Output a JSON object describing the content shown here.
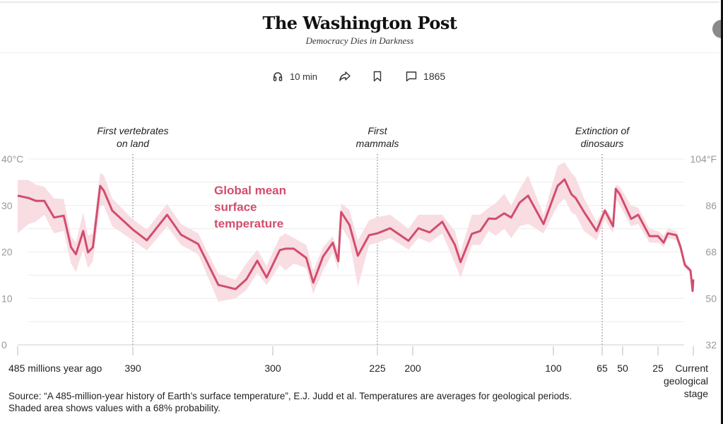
{
  "header": {
    "logo": "The Washington Post",
    "tagline": "Democracy Dies in Darkness"
  },
  "toolbar": {
    "listen_label": "10 min",
    "comments_count": "1865",
    "icons": [
      "headphones-icon",
      "share-icon",
      "bookmark-icon",
      "comment-icon"
    ]
  },
  "chart_data": {
    "type": "line",
    "series_label_lines": [
      "Global mean",
      "surface",
      "temperature"
    ],
    "colors": {
      "line": "#d14d6d",
      "band": "#f8dde3",
      "grid": "#ececec",
      "axis_text": "#999999"
    },
    "xlabel": "",
    "ylabel": "",
    "x_unit": "millions of years ago",
    "xlim": [
      485,
      0
    ],
    "ylim": [
      0,
      40
    ],
    "grid": true,
    "y_ticks_left": [
      {
        "value": 40,
        "label": "40°C"
      },
      {
        "value": 30,
        "label": "30"
      },
      {
        "value": 20,
        "label": "20"
      },
      {
        "value": 10,
        "label": "10"
      },
      {
        "value": 0,
        "label": "0"
      }
    ],
    "y_ticks_right": [
      {
        "value": 40,
        "label": "104°F"
      },
      {
        "value": 30,
        "label": "86"
      },
      {
        "value": 20,
        "label": "68"
      },
      {
        "value": 10,
        "label": "50"
      },
      {
        "value": 0,
        "label": "32"
      }
    ],
    "x_ticks": [
      {
        "value": 485,
        "label": "485 millions year ago"
      },
      {
        "value": 390,
        "label": "390"
      },
      {
        "value": 300,
        "label": "300"
      },
      {
        "value": 225,
        "label": "225"
      },
      {
        "value": 200,
        "label": "200"
      },
      {
        "value": 100,
        "label": "100"
      },
      {
        "value": 65,
        "label": "65"
      },
      {
        "value": 50,
        "label": "50"
      },
      {
        "value": 25,
        "label": "25"
      },
      {
        "value": 0,
        "label": "Current geological stage",
        "label_lines": [
          "Current",
          "geological",
          "stage"
        ]
      }
    ],
    "annotations": [
      {
        "x": 390,
        "lines": [
          "First vertebrates",
          "on land"
        ]
      },
      {
        "x": 225,
        "lines": [
          "First",
          "mammals"
        ]
      },
      {
        "x": 65,
        "lines": [
          "Extinction of",
          "dinosaurs"
        ]
      }
    ],
    "x": [
      485,
      476,
      470,
      463,
      455,
      447,
      441,
      437,
      431,
      427,
      423,
      417,
      414,
      407,
      390,
      381,
      368,
      359,
      348,
      335,
      324,
      317,
      310,
      304,
      295,
      291,
      285,
      276,
      271,
      264,
      257,
      253,
      251,
      245,
      239,
      231,
      225,
      216,
      203,
      196,
      188,
      179,
      170,
      166,
      158,
      152,
      146,
      141,
      135,
      130,
      124,
      118,
      107,
      97,
      92,
      87,
      84,
      78,
      69,
      63,
      57,
      55,
      52,
      44,
      39,
      31,
      25,
      21,
      18,
      12,
      9,
      6,
      2,
      0.5,
      0
    ],
    "y": [
      32.1,
      31.6,
      31.0,
      31.0,
      27.4,
      27.8,
      21.0,
      19.5,
      24.5,
      19.9,
      21.0,
      34.2,
      33.2,
      28.9,
      24.8,
      22.5,
      28.0,
      23.7,
      21.7,
      12.9,
      12.0,
      14.1,
      18.1,
      14.5,
      20.4,
      20.7,
      20.7,
      18.7,
      13.4,
      19.0,
      22.0,
      18.0,
      28.6,
      25.8,
      19.2,
      23.6,
      24.0,
      25.1,
      22.4,
      25.1,
      24.2,
      26.5,
      21.5,
      17.8,
      23.9,
      24.5,
      27.2,
      27.1,
      28.3,
      27.4,
      30.6,
      32.1,
      26.0,
      34.2,
      35.6,
      32.4,
      31.6,
      28.6,
      24.5,
      28.9,
      25.5,
      33.6,
      32.4,
      27.1,
      28.0,
      23.4,
      23.4,
      22.0,
      24.0,
      23.6,
      21.0,
      17.2,
      16.0,
      11.6,
      14.1
    ],
    "band_lower": [
      24,
      26,
      26.5,
      28,
      24,
      24.5,
      17.5,
      15.7,
      20.5,
      16.5,
      18,
      30,
      30,
      25.5,
      22.5,
      20.3,
      25.5,
      21.5,
      19.5,
      9.3,
      10,
      11.8,
      15.5,
      12.8,
      17.2,
      16,
      17.5,
      16.5,
      11,
      16,
      19.8,
      16,
      25.5,
      22.5,
      12.5,
      21.5,
      22,
      23,
      20.5,
      23,
      22,
      24,
      17.5,
      14.5,
      21.5,
      21.5,
      24.5,
      23.5,
      25,
      23,
      25.5,
      26,
      24,
      30,
      31.5,
      28.5,
      28,
      24.5,
      22.5,
      27,
      24,
      31.5,
      30,
      25.5,
      26,
      22,
      22,
      21,
      23,
      22.5,
      20,
      16.5,
      15.5,
      11.3,
      13.8
    ],
    "band_upper": [
      35.5,
      35.5,
      34.5,
      34,
      31.5,
      31.4,
      23.5,
      22,
      28.5,
      23.5,
      24,
      37,
      36.5,
      31.5,
      27,
      24.8,
      30.3,
      26,
      24,
      15.3,
      14,
      17.5,
      20.5,
      17,
      23.2,
      24,
      23,
      21.5,
      16,
      21,
      23.4,
      20,
      30.5,
      29,
      22.5,
      26.8,
      27.5,
      28,
      25,
      28,
      28,
      28,
      24.5,
      20,
      28,
      28,
      29.5,
      30.5,
      32.5,
      30,
      33.5,
      36.5,
      28,
      38.5,
      39.3,
      37,
      36,
      31.5,
      26.5,
      29.5,
      27,
      34.5,
      34,
      30,
      29.5,
      25,
      24.5,
      23.5,
      25,
      24.5,
      22,
      18,
      16.5,
      12,
      14.4
    ],
    "band_note": "68% probability"
  },
  "source": "Source: “A 485-million-year history of Earth’s surface temperature”, E.J. Judd et al. Temperatures are averages for geological periods. Shaded area shows values with a 68% probability."
}
